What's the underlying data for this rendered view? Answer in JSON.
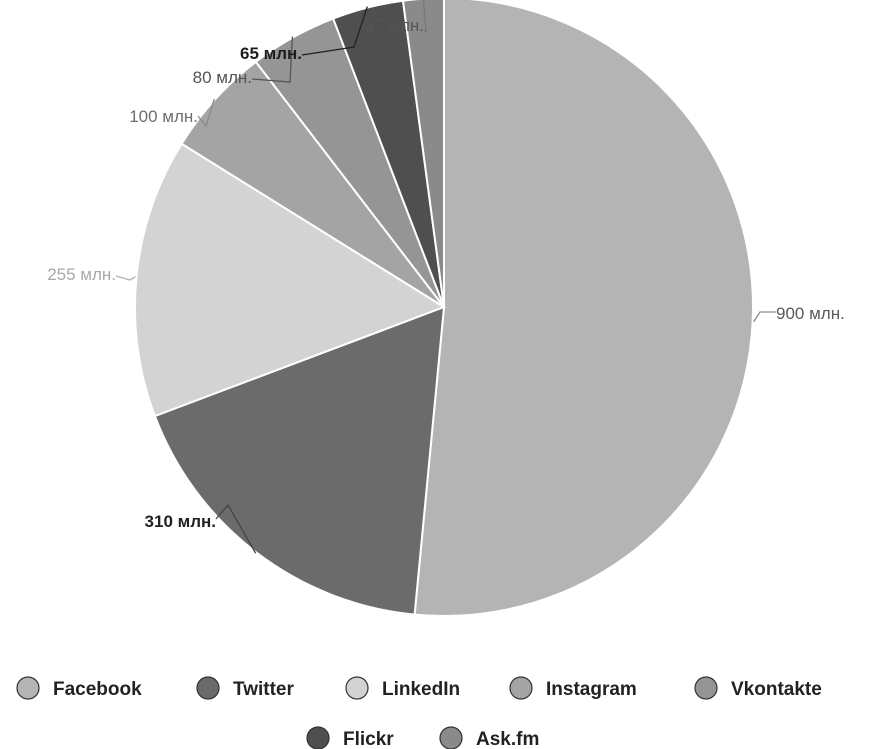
{
  "chart_data": {
    "type": "pie",
    "categories": [
      "Facebook",
      "Twitter",
      "LinkedIn",
      "Instagram",
      "Vkontakte",
      "Flickr",
      "Ask.fm"
    ],
    "values": [
      900,
      310,
      255,
      100,
      80,
      65,
      37
    ],
    "data_labels": [
      "900 млн.",
      "310 млн.",
      "255 млн.",
      "100 млн.",
      "80 млн.",
      "65 млн.",
      "37 млн."
    ],
    "start_angle_deg": 0,
    "direction": "clockwise",
    "legend_position": "bottom",
    "colors": [
      "#b4b4b4",
      "#6b6b6b",
      "#d3d3d3",
      "#a4a4a4",
      "#959595",
      "#4f4f4f",
      "#8a8a8a"
    ],
    "label_colors": [
      "#5a5a5a",
      "#222222",
      "#a8a8a8",
      "#6e6e6e",
      "#555555",
      "#1e1e1e",
      "#555555"
    ],
    "leader_colors": [
      "#8a8a8a",
      "#444444",
      "#b0b0b0",
      "#8a8a8a",
      "#555555",
      "#222222",
      "#777777"
    ],
    "bold_labels": [
      false,
      true,
      false,
      false,
      false,
      true,
      false
    ]
  }
}
